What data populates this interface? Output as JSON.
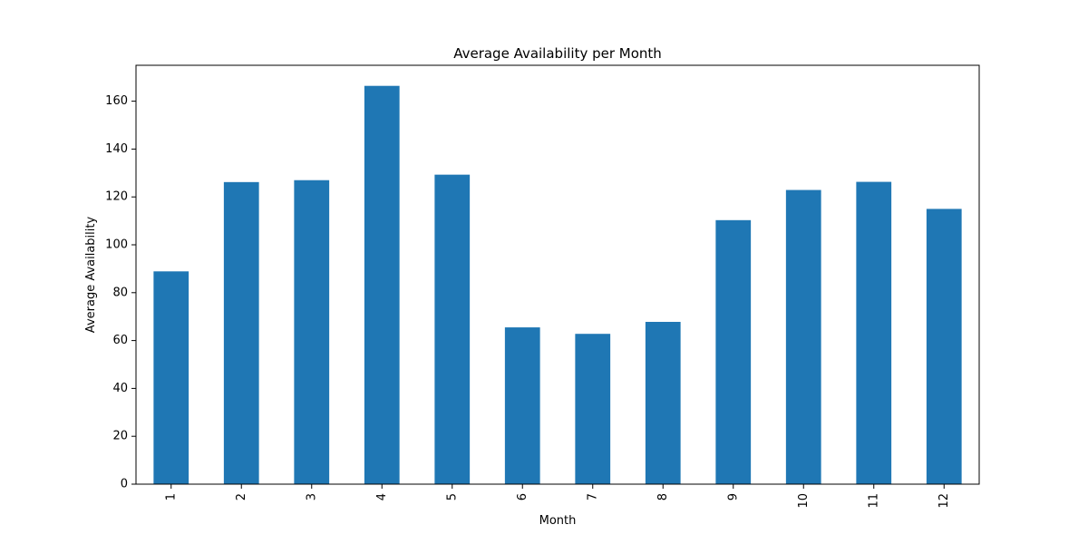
{
  "chart_data": {
    "type": "bar",
    "title": "Average Availability per Month",
    "xlabel": "Month",
    "ylabel": "Average Availability",
    "categories": [
      "1",
      "2",
      "3",
      "4",
      "5",
      "6",
      "7",
      "8",
      "9",
      "10",
      "11",
      "12"
    ],
    "values": [
      88.9,
      126.2,
      127.0,
      166.4,
      129.3,
      65.5,
      62.8,
      67.8,
      110.3,
      122.9,
      126.3,
      115.0
    ],
    "ylim": [
      0,
      175
    ],
    "yticks": [
      0,
      20,
      40,
      60,
      80,
      100,
      120,
      140,
      160
    ],
    "bar_color": "#1f77b4",
    "grid": false,
    "legend": "none"
  }
}
